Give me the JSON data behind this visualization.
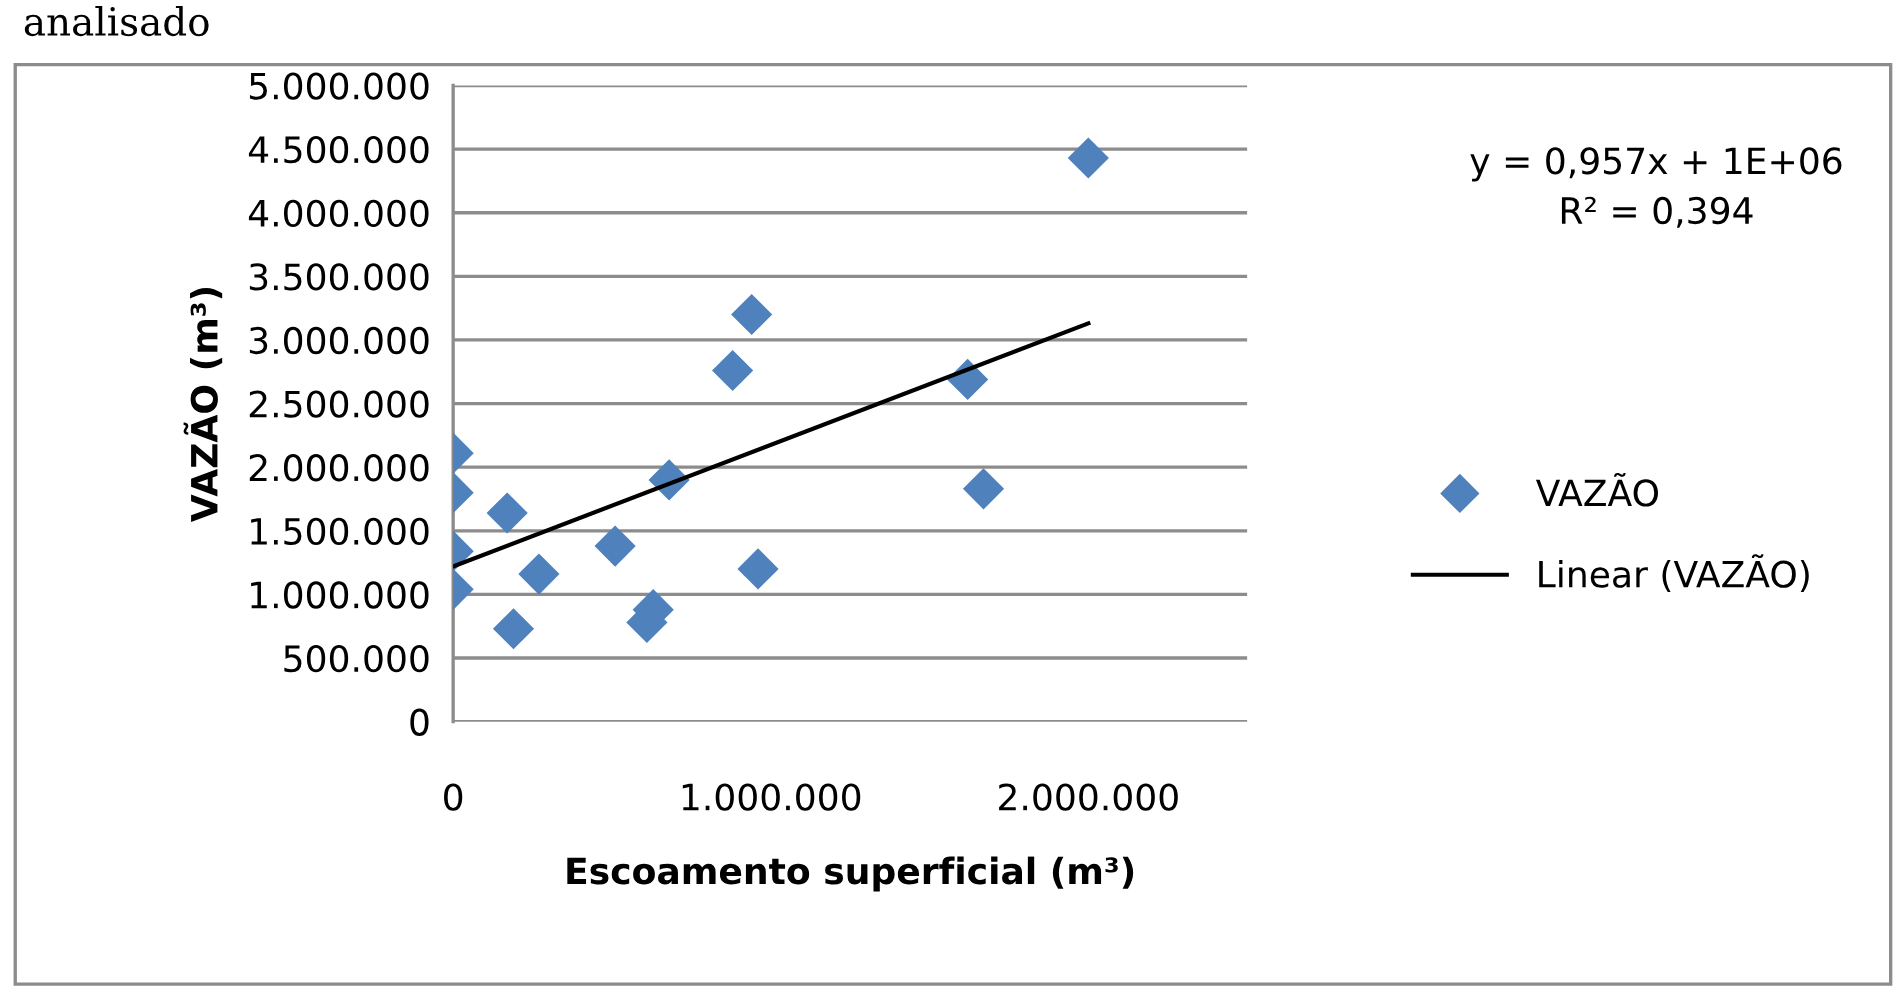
{
  "chart_data": {
    "type": "scatter",
    "xlabel": "Escoamento superficial (m³)",
    "ylabel": "VAZÃO (m³)",
    "annotations": [
      "y = 0,957x + 1E+06",
      "R² = 0,394",
      "analisado"
    ],
    "series": [
      {
        "name": "VAZÃO",
        "type": "scatter",
        "color": "#4f81bd",
        "marker": "diamond",
        "x": [
          0,
          0,
          0,
          0,
          170000,
          190000,
          270000,
          510000,
          610000,
          630000,
          680000,
          880000,
          940000,
          960000,
          1620000,
          1670000,
          2000000
        ],
        "values": [
          2110000,
          1800000,
          1340000,
          1040000,
          1640000,
          730000,
          1160000,
          1380000,
          780000,
          880000,
          1900000,
          2760000,
          3200000,
          1200000,
          2690000,
          1830000,
          4430000
        ]
      },
      {
        "name": "Linear (VAZÃO)",
        "type": "line",
        "color": "#000000",
        "line_style": "solid",
        "marker": "none",
        "x": [
          0,
          2000000
        ],
        "values": [
          1220000,
          3130000
        ]
      }
    ],
    "xlim": [
      0,
      2500000
    ],
    "xticks": [
      {
        "value": 0,
        "label": "0"
      },
      {
        "value": 1000000,
        "label": "1.000.000"
      },
      {
        "value": 2000000,
        "label": "2.000.000"
      }
    ],
    "ylim": [
      0,
      5000000
    ],
    "yticks": [
      {
        "value": 0,
        "label": "0"
      },
      {
        "value": 500000,
        "label": "500.000"
      },
      {
        "value": 1000000,
        "label": "1.000.000"
      },
      {
        "value": 1500000,
        "label": "1.500.000"
      },
      {
        "value": 2000000,
        "label": "2.000.000"
      },
      {
        "value": 2500000,
        "label": "2.500.000"
      },
      {
        "value": 3000000,
        "label": "3.000.000"
      },
      {
        "value": 3500000,
        "label": "3.500.000"
      },
      {
        "value": 4000000,
        "label": "4.000.000"
      },
      {
        "value": 4500000,
        "label": "4.500.000"
      },
      {
        "value": 5000000,
        "label": "5.000.000"
      }
    ],
    "grid": "y",
    "legend": "right"
  }
}
